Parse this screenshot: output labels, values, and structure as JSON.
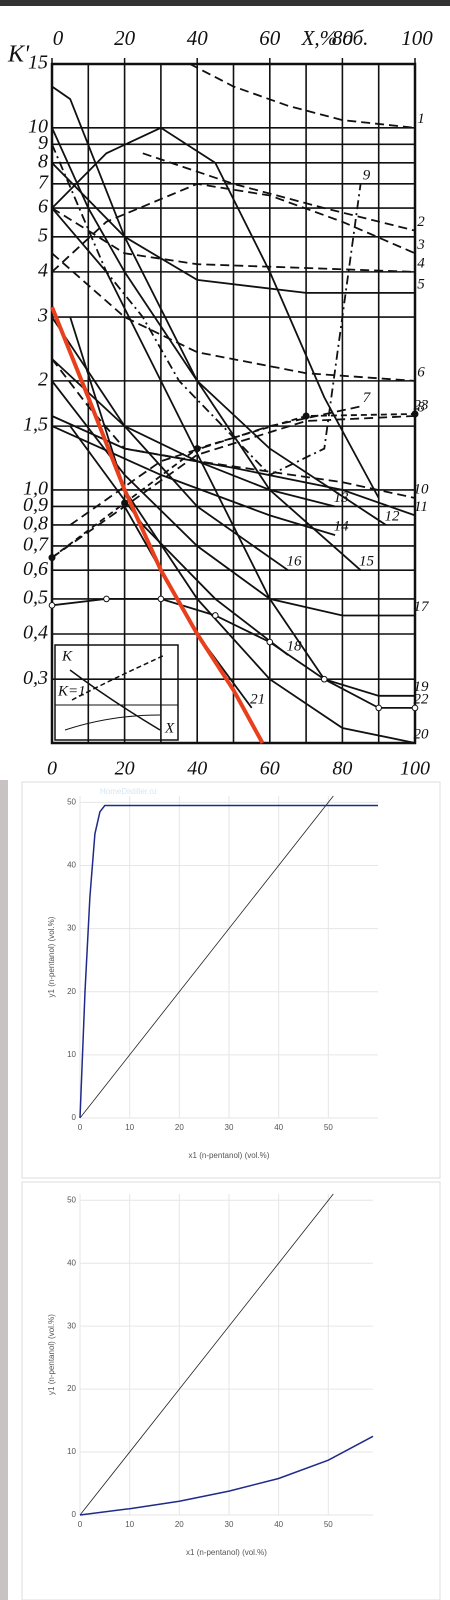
{
  "chart_data": [
    {
      "type": "line",
      "ylabel": "K'",
      "xlabel": "X,% об.",
      "log_y": true,
      "xlim": [
        0,
        100
      ],
      "ylim": [
        0.2,
        15
      ],
      "xticks": [
        0,
        20,
        40,
        60,
        80,
        100
      ],
      "xticks_top": [
        0,
        20,
        40,
        60,
        80,
        100
      ],
      "xgrid": [
        0,
        10,
        20,
        30,
        40,
        50,
        60,
        70,
        80,
        90,
        100
      ],
      "yticks": [
        15,
        10,
        9,
        8,
        7,
        6,
        5,
        4,
        3,
        2,
        {
          "value": 1.5,
          "label": "1,5"
        },
        {
          "value": 1,
          "label": "1,0"
        },
        {
          "value": 0.9,
          "label": "0,9"
        },
        {
          "value": 0.8,
          "label": "0,8"
        },
        {
          "value": 0.7,
          "label": "0,7"
        },
        {
          "value": 0.6,
          "label": "0,6"
        },
        {
          "value": 0.5,
          "label": "0,5"
        },
        {
          "value": 0.4,
          "label": "0,4"
        },
        {
          "value": 0.3,
          "label": "0,3"
        }
      ],
      "grid": true,
      "inset_labels": [
        "K",
        "K=1",
        "X"
      ],
      "series": [
        {
          "name": "1",
          "color": "#111",
          "style": "dashed",
          "x": [
            38,
            50,
            65,
            80,
            100
          ],
          "values": [
            15,
            13,
            11.5,
            10.5,
            10
          ]
        },
        {
          "name": "2",
          "color": "#111",
          "style": "dashed",
          "x": [
            25,
            50,
            75,
            100
          ],
          "values": [
            8.5,
            7,
            6,
            5.2
          ]
        },
        {
          "name": "3",
          "color": "#111",
          "style": "dashed",
          "x": [
            0,
            15,
            40,
            60,
            80,
            100
          ],
          "values": [
            4,
            5.5,
            7,
            6.5,
            5.5,
            4.5
          ]
        },
        {
          "name": "4",
          "color": "#111",
          "style": "dashed",
          "x": [
            0,
            20,
            40,
            70,
            100
          ],
          "values": [
            6,
            4.5,
            4.2,
            4.1,
            4
          ]
        },
        {
          "name": "5",
          "color": "#111",
          "style": "solid",
          "x": [
            0,
            20,
            40,
            70,
            100
          ],
          "values": [
            8,
            5,
            3.8,
            3.5,
            3.5
          ]
        },
        {
          "name": "6",
          "color": "#111",
          "style": "dashed",
          "x": [
            0,
            20,
            40,
            70,
            100
          ],
          "values": [
            4.5,
            3,
            2.4,
            2.1,
            2
          ]
        },
        {
          "name": "7",
          "color": "#111",
          "style": "dashed",
          "x": [
            5,
            30,
            60,
            85
          ],
          "values": [
            0.8,
            1.2,
            1.5,
            1.7
          ]
        },
        {
          "name": "8",
          "color": "#111",
          "style": "dashed",
          "x": [
            0,
            20,
            40,
            70,
            100
          ],
          "values": [
            0.65,
            0.9,
            1.25,
            1.55,
            1.6
          ]
        },
        {
          "name": "9",
          "color": "#111",
          "style": "dashdot",
          "x": [
            0,
            15,
            25,
            35,
            60,
            75,
            85
          ],
          "values": [
            9,
            4,
            3,
            2,
            1.1,
            1.3,
            7
          ]
        },
        {
          "name": "10",
          "color": "#111",
          "style": "dashed",
          "x": [
            0,
            10,
            20,
            40,
            80,
            100
          ],
          "values": [
            2.3,
            1.7,
            1.3,
            1.2,
            1.05,
            0.95
          ]
        },
        {
          "name": "11",
          "color": "#111",
          "style": "solid",
          "x": [
            0,
            20,
            50,
            80,
            100
          ],
          "values": [
            1.6,
            1.3,
            1.15,
            1,
            0.85
          ]
        },
        {
          "name": "12",
          "color": "#111",
          "style": "solid",
          "x": [
            0,
            10,
            20,
            40,
            60,
            92
          ],
          "values": [
            10,
            6,
            4,
            2,
            1.3,
            0.8
          ]
        },
        {
          "name": "13",
          "color": "#111",
          "style": "solid",
          "x": [
            0,
            20,
            40,
            60,
            78
          ],
          "values": [
            2.3,
            1.5,
            1.2,
            1,
            0.9
          ]
        },
        {
          "name": "14",
          "color": "#111",
          "style": "solid",
          "x": [
            0,
            30,
            60,
            78
          ],
          "values": [
            1.5,
            1.1,
            0.85,
            0.75
          ]
        },
        {
          "name": "15",
          "color": "#111",
          "style": "solid",
          "x": [
            0,
            5,
            20,
            40,
            60,
            85
          ],
          "values": [
            13,
            12,
            5,
            2,
            1,
            0.6
          ]
        },
        {
          "name": "16",
          "color": "#111",
          "style": "solid",
          "x": [
            0,
            20,
            40,
            65
          ],
          "values": [
            3,
            1.5,
            0.9,
            0.6
          ]
        },
        {
          "name": "17",
          "color": "#111",
          "style": "solid",
          "x": [
            0,
            20,
            40,
            60,
            80,
            100
          ],
          "values": [
            2,
            1.1,
            0.7,
            0.5,
            0.45,
            0.45
          ]
        },
        {
          "name": "18",
          "color": "#111",
          "style": "solid",
          "x": [
            5,
            25,
            45,
            65
          ],
          "values": [
            1.5,
            0.8,
            0.5,
            0.35
          ]
        },
        {
          "name": "19",
          "color": "#111",
          "style": "solid",
          "x": [
            0,
            15,
            30,
            45,
            60,
            75,
            90,
            100
          ],
          "values": [
            6,
            4,
            2,
            1,
            0.5,
            0.3,
            0.27,
            0.27
          ]
        },
        {
          "name": "20",
          "color": "#111",
          "style": "solid",
          "x": [
            5,
            20,
            40,
            60,
            80,
            100
          ],
          "values": [
            3,
            1,
            0.5,
            0.3,
            0.22,
            0.2
          ]
        },
        {
          "name": "21",
          "color": "#111",
          "style": "solid",
          "x": [
            20,
            40,
            55
          ],
          "values": [
            0.9,
            0.4,
            0.25
          ]
        },
        {
          "name": "22",
          "color": "#111",
          "style": "circles",
          "x": [
            0,
            15,
            30,
            45,
            60,
            75,
            90,
            100
          ],
          "values": [
            0.48,
            0.5,
            0.5,
            0.45,
            0.38,
            0.3,
            0.25,
            0.25
          ]
        },
        {
          "name": "23",
          "color": "#111",
          "style": "dots",
          "x": [
            0,
            20,
            40,
            70,
            100
          ],
          "values": [
            0.65,
            0.92,
            1.3,
            1.6,
            1.62
          ]
        },
        {
          "color": "#111",
          "style": "solid",
          "x": [
            0,
            15,
            30,
            45,
            60,
            75,
            90
          ],
          "values": [
            6,
            8.5,
            10,
            8,
            4,
            1.8,
            0.95
          ]
        },
        {
          "color": "#e8401c",
          "style": "thick",
          "x": [
            0,
            10,
            20,
            30,
            40,
            50,
            58
          ],
          "values": [
            3.2,
            1.8,
            1,
            0.6,
            0.4,
            0.28,
            0.2
          ]
        }
      ]
    },
    {
      "type": "line",
      "watermark": "HomeDistiller.ru",
      "xlabel": "x1 (n-pentanol) (vol.%)",
      "ylabel": "y1 (n-pentanol) (vol.%)",
      "xlim": [
        0,
        60
      ],
      "ylim": [
        0,
        51
      ],
      "xticks": [
        0,
        10,
        20,
        30,
        40,
        50
      ],
      "yticks": [
        0,
        10,
        20,
        30,
        40,
        50
      ],
      "grid": true,
      "series": [
        {
          "color": "#222",
          "style": "thin",
          "x": [
            0,
            51
          ],
          "values": [
            0,
            51
          ]
        },
        {
          "color": "#1f2a8a",
          "style": "solid",
          "x": [
            0,
            1,
            2,
            3,
            4,
            5,
            60
          ],
          "values": [
            0,
            20,
            35,
            45,
            48.5,
            49.5,
            49.5
          ]
        }
      ]
    },
    {
      "type": "line",
      "xlabel": "x1 (n-pentanol) (vol.%)",
      "ylabel": "y1 (n-pentanol) (vol.%)",
      "xlim": [
        0,
        59
      ],
      "ylim": [
        0,
        51
      ],
      "xticks": [
        0,
        10,
        20,
        30,
        40,
        50
      ],
      "yticks": [
        0,
        10,
        20,
        30,
        40,
        50
      ],
      "grid": true,
      "series": [
        {
          "color": "#222",
          "style": "thin",
          "x": [
            0,
            51
          ],
          "values": [
            0,
            51
          ]
        },
        {
          "color": "#1f2a8a",
          "style": "solid",
          "x": [
            0,
            10,
            20,
            30,
            40,
            50,
            59
          ],
          "values": [
            0,
            1,
            2.2,
            3.8,
            5.8,
            8.7,
            12.5
          ]
        }
      ]
    }
  ]
}
